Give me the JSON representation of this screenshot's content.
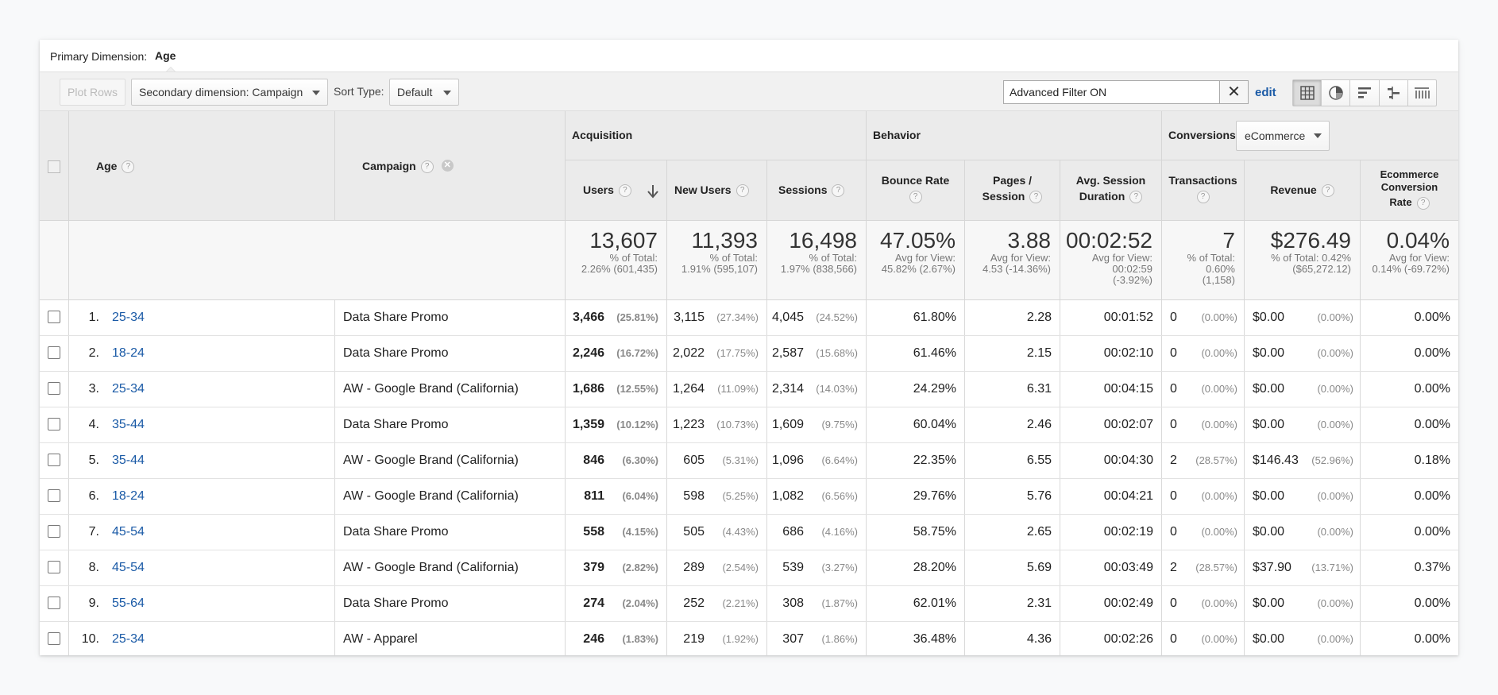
{
  "primary_dimension": {
    "label": "Primary Dimension:",
    "value": "Age"
  },
  "toolbar": {
    "plot_rows": "Plot Rows",
    "secondary_dimension": "Secondary dimension: Campaign",
    "sort_type_label": "Sort Type:",
    "sort_type_value": "Default",
    "filter_value": "Advanced Filter ON",
    "filter_clear": "✕",
    "edit_label": "edit"
  },
  "headers": {
    "age": "Age",
    "campaign": "Campaign",
    "acquisition": "Acquisition",
    "behavior": "Behavior",
    "conversions": "Conversions",
    "conversions_select": "eCommerce",
    "users": "Users",
    "new_users": "New Users",
    "sessions": "Sessions",
    "bounce_rate": "Bounce Rate",
    "pages_session_1": "Pages /",
    "pages_session_2": "Session",
    "avg_session_1": "Avg. Session",
    "avg_session_2": "Duration",
    "transactions": "Transactions",
    "revenue": "Revenue",
    "ecr_1": "Ecommerce",
    "ecr_2": "Conversion",
    "ecr_3": "Rate",
    "help": "?"
  },
  "totals": {
    "users": {
      "value": "13,607",
      "l1": "% of Total:",
      "l2": "2.26% (601,435)"
    },
    "new_users": {
      "value": "11,393",
      "l1": "% of Total:",
      "l2": "1.91% (595,107)"
    },
    "sessions": {
      "value": "16,498",
      "l1": "% of Total:",
      "l2": "1.97% (838,566)"
    },
    "bounce_rate": {
      "value": "47.05%",
      "l1": "Avg for View:",
      "l2": "45.82% (2.67%)"
    },
    "pages_session": {
      "value": "3.88",
      "l1": "Avg for View:",
      "l2": "4.53 (-14.36%)"
    },
    "avg_duration": {
      "value": "00:02:52",
      "l1": "Avg for View:",
      "l2": "00:02:59",
      "l3": "(-3.92%)"
    },
    "transactions": {
      "value": "7",
      "l1": "% of Total:",
      "l2": "0.60%",
      "l3": "(1,158)"
    },
    "revenue": {
      "value": "$276.49",
      "l1": "% of Total: 0.42%",
      "l2": "($65,272.12)"
    },
    "ecr": {
      "value": "0.04%",
      "l1": "Avg for View:",
      "l2": "0.14% (-69.72%)"
    }
  },
  "rows": [
    {
      "idx": "1.",
      "age": "25-34",
      "campaign": "Data Share Promo",
      "users": "3,466",
      "users_pct": "(25.81%)",
      "new_users": "3,115",
      "new_users_pct": "(27.34%)",
      "sessions": "4,045",
      "sessions_pct": "(24.52%)",
      "bounce": "61.80%",
      "pages": "2.28",
      "duration": "00:01:52",
      "trans": "0",
      "trans_pct": "(0.00%)",
      "revenue": "$0.00",
      "revenue_pct": "(0.00%)",
      "ecr": "0.00%"
    },
    {
      "idx": "2.",
      "age": "18-24",
      "campaign": "Data Share Promo",
      "users": "2,246",
      "users_pct": "(16.72%)",
      "new_users": "2,022",
      "new_users_pct": "(17.75%)",
      "sessions": "2,587",
      "sessions_pct": "(15.68%)",
      "bounce": "61.46%",
      "pages": "2.15",
      "duration": "00:02:10",
      "trans": "0",
      "trans_pct": "(0.00%)",
      "revenue": "$0.00",
      "revenue_pct": "(0.00%)",
      "ecr": "0.00%"
    },
    {
      "idx": "3.",
      "age": "25-34",
      "campaign": "AW - Google Brand (California)",
      "users": "1,686",
      "users_pct": "(12.55%)",
      "new_users": "1,264",
      "new_users_pct": "(11.09%)",
      "sessions": "2,314",
      "sessions_pct": "(14.03%)",
      "bounce": "24.29%",
      "pages": "6.31",
      "duration": "00:04:15",
      "trans": "0",
      "trans_pct": "(0.00%)",
      "revenue": "$0.00",
      "revenue_pct": "(0.00%)",
      "ecr": "0.00%"
    },
    {
      "idx": "4.",
      "age": "35-44",
      "campaign": "Data Share Promo",
      "users": "1,359",
      "users_pct": "(10.12%)",
      "new_users": "1,223",
      "new_users_pct": "(10.73%)",
      "sessions": "1,609",
      "sessions_pct": "(9.75%)",
      "bounce": "60.04%",
      "pages": "2.46",
      "duration": "00:02:07",
      "trans": "0",
      "trans_pct": "(0.00%)",
      "revenue": "$0.00",
      "revenue_pct": "(0.00%)",
      "ecr": "0.00%"
    },
    {
      "idx": "5.",
      "age": "35-44",
      "campaign": "AW - Google Brand (California)",
      "users": "846",
      "users_pct": "(6.30%)",
      "new_users": "605",
      "new_users_pct": "(5.31%)",
      "sessions": "1,096",
      "sessions_pct": "(6.64%)",
      "bounce": "22.35%",
      "pages": "6.55",
      "duration": "00:04:30",
      "trans": "2",
      "trans_pct": "(28.57%)",
      "revenue": "$146.43",
      "revenue_pct": "(52.96%)",
      "ecr": "0.18%"
    },
    {
      "idx": "6.",
      "age": "18-24",
      "campaign": "AW - Google Brand (California)",
      "users": "811",
      "users_pct": "(6.04%)",
      "new_users": "598",
      "new_users_pct": "(5.25%)",
      "sessions": "1,082",
      "sessions_pct": "(6.56%)",
      "bounce": "29.76%",
      "pages": "5.76",
      "duration": "00:04:21",
      "trans": "0",
      "trans_pct": "(0.00%)",
      "revenue": "$0.00",
      "revenue_pct": "(0.00%)",
      "ecr": "0.00%"
    },
    {
      "idx": "7.",
      "age": "45-54",
      "campaign": "Data Share Promo",
      "users": "558",
      "users_pct": "(4.15%)",
      "new_users": "505",
      "new_users_pct": "(4.43%)",
      "sessions": "686",
      "sessions_pct": "(4.16%)",
      "bounce": "58.75%",
      "pages": "2.65",
      "duration": "00:02:19",
      "trans": "0",
      "trans_pct": "(0.00%)",
      "revenue": "$0.00",
      "revenue_pct": "(0.00%)",
      "ecr": "0.00%"
    },
    {
      "idx": "8.",
      "age": "45-54",
      "campaign": "AW - Google Brand (California)",
      "users": "379",
      "users_pct": "(2.82%)",
      "new_users": "289",
      "new_users_pct": "(2.54%)",
      "sessions": "539",
      "sessions_pct": "(3.27%)",
      "bounce": "28.20%",
      "pages": "5.69",
      "duration": "00:03:49",
      "trans": "2",
      "trans_pct": "(28.57%)",
      "revenue": "$37.90",
      "revenue_pct": "(13.71%)",
      "ecr": "0.37%"
    },
    {
      "idx": "9.",
      "age": "55-64",
      "campaign": "Data Share Promo",
      "users": "274",
      "users_pct": "(2.04%)",
      "new_users": "252",
      "new_users_pct": "(2.21%)",
      "sessions": "308",
      "sessions_pct": "(1.87%)",
      "bounce": "62.01%",
      "pages": "2.31",
      "duration": "00:02:49",
      "trans": "0",
      "trans_pct": "(0.00%)",
      "revenue": "$0.00",
      "revenue_pct": "(0.00%)",
      "ecr": "0.00%"
    },
    {
      "idx": "10.",
      "age": "25-34",
      "campaign": "AW - Apparel",
      "users": "246",
      "users_pct": "(1.83%)",
      "new_users": "219",
      "new_users_pct": "(1.92%)",
      "sessions": "307",
      "sessions_pct": "(1.86%)",
      "bounce": "36.48%",
      "pages": "4.36",
      "duration": "00:02:26",
      "trans": "0",
      "trans_pct": "(0.00%)",
      "revenue": "$0.00",
      "revenue_pct": "(0.00%)",
      "ecr": "0.00%"
    }
  ],
  "icons": {
    "view_buttons": [
      "table-view-icon",
      "pie-view-icon",
      "performance-view-icon",
      "comparison-view-icon",
      "pivot-view-icon"
    ]
  },
  "colors": {
    "link": "#1a5aa6",
    "header_bg": "#ebebeb"
  }
}
